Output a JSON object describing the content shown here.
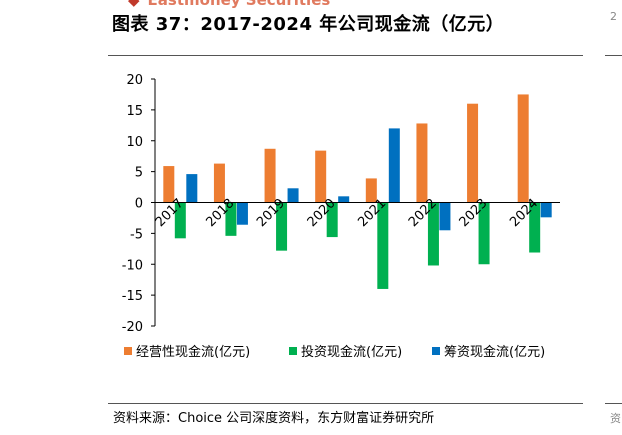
{
  "header": {
    "brand": "Eastmoney Securities",
    "title": "图表 37：2017-2024 年公司现金流（亿元）",
    "edge_top_glyph": "2",
    "edge_bottom_glyph": "资"
  },
  "chart_data": {
    "type": "bar",
    "categories": [
      "2017",
      "2018",
      "2019",
      "2020",
      "2021",
      "2022",
      "2023",
      "2024"
    ],
    "series": [
      {
        "name": "经营性现金流(亿元)",
        "color": "#ed7d31",
        "values": [
          5.9,
          6.3,
          8.7,
          8.4,
          3.9,
          12.8,
          16.0,
          17.5
        ]
      },
      {
        "name": "投资现金流(亿元)",
        "color": "#00b050",
        "values": [
          -5.8,
          -5.4,
          -7.8,
          -5.6,
          -14.0,
          -10.2,
          -10.0,
          -8.1
        ]
      },
      {
        "name": "筹资现金流(亿元)",
        "color": "#0070c0",
        "values": [
          4.6,
          -3.6,
          2.3,
          1.0,
          12.0,
          -4.5,
          0.0,
          -2.4
        ]
      }
    ],
    "yticks": [
      20,
      15,
      10,
      5,
      0,
      -5,
      -10,
      -15,
      -20
    ],
    "ylim": [
      -20,
      20
    ],
    "legend_position": "bottom",
    "grid": false
  },
  "footer": {
    "source": "资料来源：Choice 公司深度资料，东方财富证券研究所"
  }
}
